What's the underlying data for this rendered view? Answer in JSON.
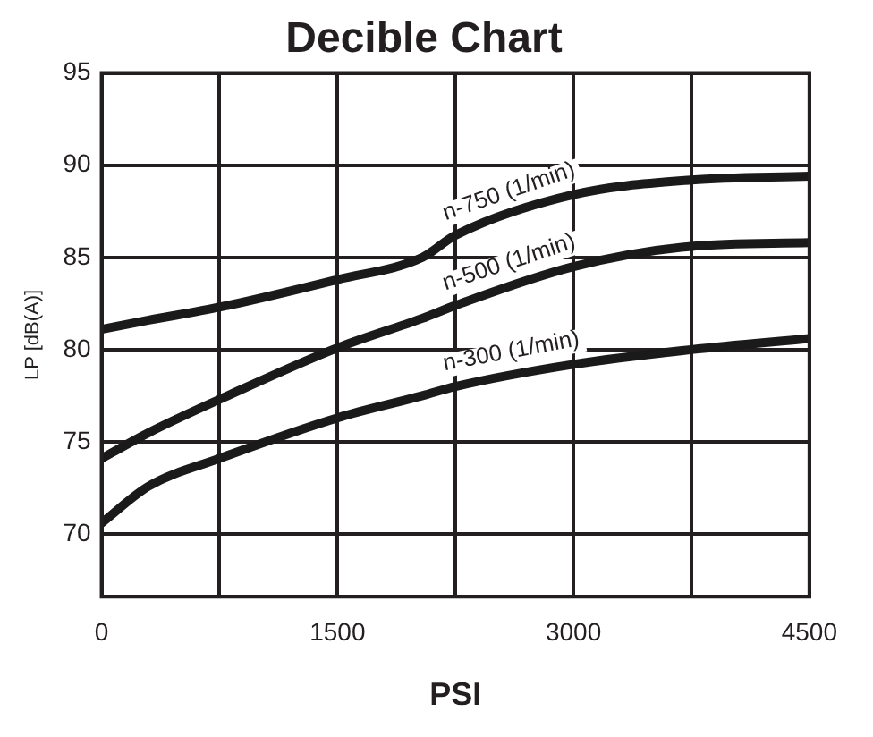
{
  "chart_data": {
    "type": "line",
    "title": "Decible Chart",
    "xlabel": "PSI",
    "ylabel": "LP [dB(A)]",
    "x": [
      0,
      300,
      750,
      1500,
      2040,
      2250,
      3000,
      3750,
      4500
    ],
    "series": [
      {
        "name": "n-750 (1/min)",
        "color": "#1a1a1a",
        "values": [
          81.1,
          81.6,
          82.3,
          83.8,
          85.0,
          86.2,
          88.4,
          89.2,
          89.4
        ]
      },
      {
        "name": "n-500 (1/min)",
        "color": "#1a1a1a",
        "values": [
          74.1,
          75.5,
          77.3,
          80.1,
          81.7,
          82.4,
          84.5,
          85.6,
          85.8
        ]
      },
      {
        "name": "n-300 (1/min)",
        "color": "#1a1a1a",
        "values": [
          70.6,
          72.6,
          74.1,
          76.3,
          77.5,
          78.0,
          79.2,
          80.0,
          80.6
        ]
      }
    ],
    "xlim": [
      0,
      4500
    ],
    "xticks": [
      0,
      {
        "value": 750,
        "label": null
      },
      1500,
      {
        "value": 2250,
        "label": null
      },
      3000,
      {
        "value": 3750,
        "label": null
      },
      4500
    ],
    "ylim": [
      66.6,
      95
    ],
    "yticks": [
      70,
      75,
      80,
      85,
      90,
      95
    ],
    "grid": true,
    "legend": false,
    "marker": "none",
    "line_style": "solid"
  }
}
